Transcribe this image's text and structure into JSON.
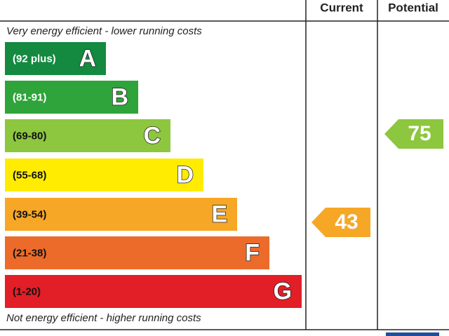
{
  "header": {
    "current": "Current",
    "potential": "Potential"
  },
  "top_note": "Very energy efficient - lower running costs",
  "bottom_note": "Not energy efficient - higher running costs",
  "bands": [
    {
      "range": "(92 plus)",
      "letter": "A",
      "color": "#138a3f"
    },
    {
      "range": "(81-91)",
      "letter": "B",
      "color": "#2ea43a"
    },
    {
      "range": "(69-80)",
      "letter": "C",
      "color": "#8dc63f"
    },
    {
      "range": "(55-68)",
      "letter": "D",
      "color": "#ffec00"
    },
    {
      "range": "(39-54)",
      "letter": "E",
      "color": "#f6a726"
    },
    {
      "range": "(21-38)",
      "letter": "F",
      "color": "#ec6b2a"
    },
    {
      "range": "(1-20)",
      "letter": "G",
      "color": "#e21e26"
    }
  ],
  "current": {
    "score": "43",
    "color": "#f6a726"
  },
  "potential": {
    "score": "75",
    "color": "#8dc63f"
  }
}
